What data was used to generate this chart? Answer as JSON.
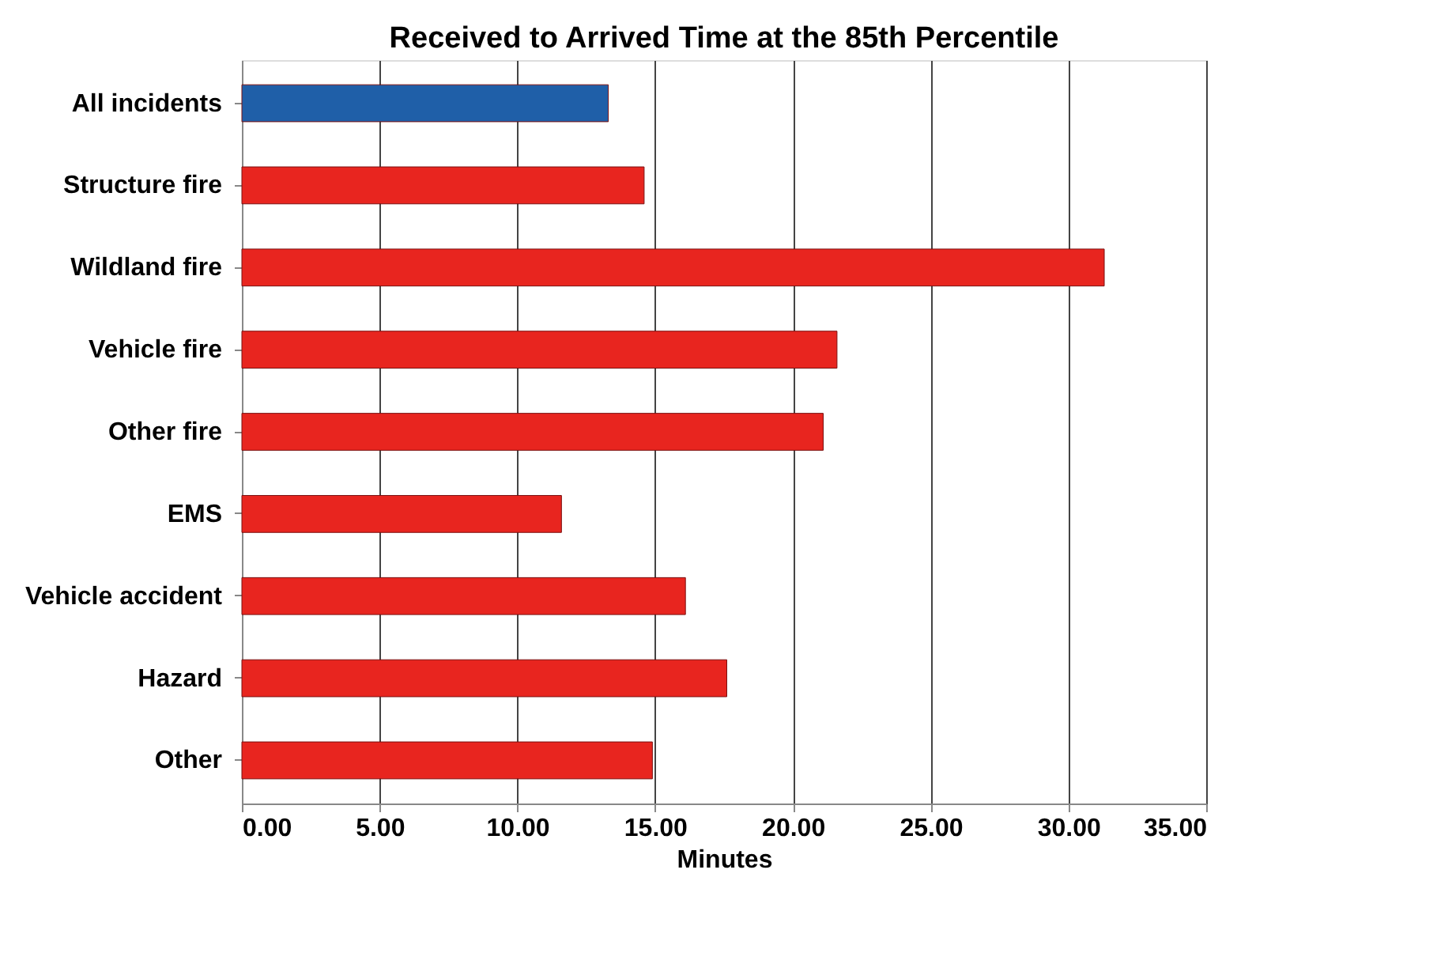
{
  "chart_data": {
    "type": "bar",
    "orientation": "horizontal",
    "title": "Received to Arrived Time at the 85th Percentile",
    "xlabel": "Minutes",
    "categories": [
      "All incidents",
      "Structure fire",
      "Wildland fire",
      "Vehicle fire",
      "Other fire",
      "EMS",
      "Vehicle accident",
      "Hazard",
      "Other"
    ],
    "values": [
      13.3,
      14.6,
      31.3,
      21.6,
      21.1,
      11.6,
      16.1,
      17.6,
      14.9
    ],
    "colors": [
      "#1f5fa8",
      "#e8251f",
      "#e8251f",
      "#e8251f",
      "#e8251f",
      "#e8251f",
      "#e8251f",
      "#e8251f",
      "#e8251f"
    ],
    "xlim": [
      0,
      35
    ],
    "xticks": [
      {
        "value": 0,
        "label": "0.00"
      },
      {
        "value": 5,
        "label": "5.00"
      },
      {
        "value": 10,
        "label": "10.00"
      },
      {
        "value": 15,
        "label": "15.00"
      },
      {
        "value": 20,
        "label": "20.00"
      },
      {
        "value": 25,
        "label": "25.00"
      },
      {
        "value": 30,
        "label": "30.00"
      },
      {
        "value": 35,
        "label": "35.00"
      }
    ],
    "grid": "x"
  }
}
